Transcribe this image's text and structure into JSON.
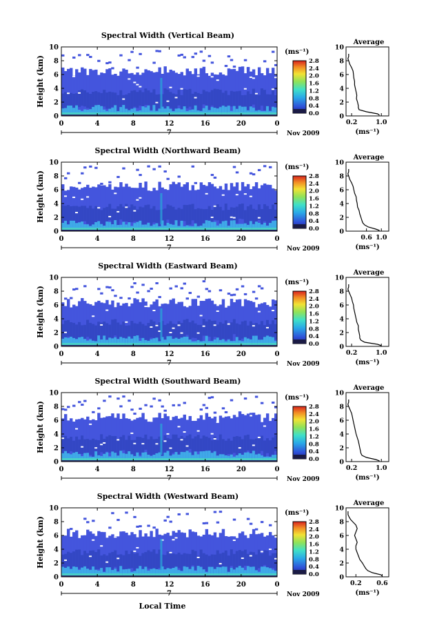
{
  "figure": {
    "time_axis_label": "Local Time",
    "date_label": "Nov 2009",
    "day_label": "7",
    "colors": {
      "background": "#ffffff",
      "text": "#000000",
      "dark_base": "#2b2b6e",
      "blue_field": "#4455dd",
      "light_field": "#3fa9e8",
      "cyan_ground": "#48d0c8"
    }
  },
  "chart_data": [
    {
      "type": "heatmap",
      "title": "Spectral Width (Vertical Beam)",
      "xlabel": "",
      "ylabel": "Height (km)",
      "xlim": [
        0,
        24
      ],
      "ylim": [
        0,
        10
      ],
      "xticks": [
        "0",
        "4",
        "8",
        "12",
        "16",
        "20",
        "0"
      ],
      "yticks": [
        "0",
        "2",
        "4",
        "6",
        "8",
        "10"
      ],
      "colorbar": {
        "unit_label": "(ms⁻¹)",
        "ticks": [
          "0.0",
          "0.4",
          "0.8",
          "1.2",
          "1.6",
          "2.0",
          "2.4",
          "2.8"
        ],
        "range": [
          0,
          2.8
        ]
      },
      "cloud_top_km": 6.5,
      "average": {
        "title": "Average",
        "xlabel": "(ms⁻¹)",
        "xticks": [
          "0.2",
          "1.0"
        ],
        "xlim": [
          0.05,
          1.2
        ],
        "ylim": [
          0,
          10
        ],
        "yticks": [
          "0",
          "2",
          "4",
          "6",
          "8",
          "10"
        ],
        "height": [
          0.1,
          0.3,
          0.6,
          0.9,
          1.2,
          1.5,
          2.0,
          2.5,
          3.0,
          3.5,
          4.0,
          4.5,
          5.0,
          5.5,
          6.0,
          6.5,
          7.0,
          7.5,
          8.0,
          8.3,
          8.6,
          9.0
        ],
        "width": [
          0.95,
          0.9,
          0.6,
          0.4,
          0.38,
          0.38,
          0.36,
          0.33,
          0.34,
          0.32,
          0.3,
          0.28,
          0.28,
          0.26,
          0.25,
          0.24,
          0.2,
          0.15,
          0.12,
          0.1,
          0.12,
          0.12
        ]
      }
    },
    {
      "type": "heatmap",
      "title": "Spectral Width (Northward Beam)",
      "xlabel": "",
      "ylabel": "Height (km)",
      "xlim": [
        0,
        24
      ],
      "ylim": [
        0,
        10
      ],
      "xticks": [
        "0",
        "4",
        "8",
        "12",
        "16",
        "20",
        "0"
      ],
      "yticks": [
        "0",
        "2",
        "4",
        "6",
        "8",
        "10"
      ],
      "colorbar": {
        "unit_label": "(ms⁻¹)",
        "ticks": [
          "0.0",
          "0.4",
          "0.8",
          "1.2",
          "1.6",
          "2.0",
          "2.4",
          "2.8"
        ],
        "range": [
          0,
          2.8
        ]
      },
      "cloud_top_km": 6.5,
      "average": {
        "title": "Average",
        "xlabel": "(ms⁻¹)",
        "xticks": [
          "0.6",
          "1.0"
        ],
        "xlim": [
          0.05,
          1.2
        ],
        "ylim": [
          0,
          10
        ],
        "yticks": [
          "0",
          "2",
          "4",
          "6",
          "8",
          "10"
        ],
        "height": [
          0.1,
          0.3,
          0.6,
          0.9,
          1.2,
          1.5,
          2.0,
          2.5,
          3.0,
          3.5,
          4.0,
          4.5,
          5.0,
          5.5,
          6.0,
          6.5,
          7.0,
          7.5,
          8.0,
          8.3,
          8.6,
          9.0
        ],
        "width": [
          0.95,
          0.85,
          0.65,
          0.55,
          0.5,
          0.48,
          0.45,
          0.42,
          0.4,
          0.36,
          0.35,
          0.33,
          0.32,
          0.28,
          0.26,
          0.24,
          0.2,
          0.15,
          0.12,
          0.1,
          0.12,
          0.12
        ]
      }
    },
    {
      "type": "heatmap",
      "title": "Spectral Width (Eastward Beam)",
      "xlabel": "",
      "ylabel": "Height (km)",
      "xlim": [
        0,
        24
      ],
      "ylim": [
        0,
        10
      ],
      "xticks": [
        "0",
        "4",
        "8",
        "12",
        "16",
        "20",
        "0"
      ],
      "yticks": [
        "0",
        "2",
        "4",
        "6",
        "8",
        "10"
      ],
      "colorbar": {
        "unit_label": "(ms⁻¹)",
        "ticks": [
          "0.0",
          "0.4",
          "0.8",
          "1.2",
          "1.6",
          "2.0",
          "2.4",
          "2.8"
        ],
        "range": [
          0,
          2.8
        ]
      },
      "cloud_top_km": 6.3,
      "average": {
        "title": "Average",
        "xlabel": "(ms⁻¹)",
        "xticks": [
          "0.2",
          "1.0"
        ],
        "xlim": [
          0.05,
          1.2
        ],
        "ylim": [
          0,
          10
        ],
        "yticks": [
          "0",
          "2",
          "4",
          "6",
          "8",
          "10"
        ],
        "height": [
          0.1,
          0.3,
          0.6,
          0.9,
          1.2,
          1.5,
          2.0,
          2.5,
          3.0,
          3.5,
          4.0,
          4.5,
          5.0,
          5.5,
          6.0,
          6.5,
          7.0,
          7.5,
          8.0,
          8.3,
          8.6,
          9.0
        ],
        "width": [
          1.0,
          0.9,
          0.55,
          0.45,
          0.42,
          0.42,
          0.4,
          0.38,
          0.38,
          0.34,
          0.32,
          0.3,
          0.28,
          0.26,
          0.25,
          0.22,
          0.2,
          0.16,
          0.12,
          0.1,
          0.12,
          0.12
        ]
      }
    },
    {
      "type": "heatmap",
      "title": "Spectral Width (Southward Beam)",
      "xlabel": "",
      "ylabel": "Height (km)",
      "xlim": [
        0,
        24
      ],
      "ylim": [
        0,
        10
      ],
      "xticks": [
        "0",
        "4",
        "8",
        "12",
        "16",
        "20",
        "0"
      ],
      "yticks": [
        "0",
        "2",
        "4",
        "6",
        "8",
        "10"
      ],
      "colorbar": {
        "unit_label": "(ms⁻¹)",
        "ticks": [
          "0.0",
          "0.4",
          "0.8",
          "1.2",
          "1.6",
          "2.0",
          "2.4",
          "2.8"
        ],
        "range": [
          0,
          2.8
        ]
      },
      "cloud_top_km": 6.4,
      "average": {
        "title": "Average",
        "xlabel": "(ms⁻¹)",
        "xticks": [
          "0.2",
          "1.0"
        ],
        "xlim": [
          0.05,
          1.2
        ],
        "ylim": [
          0,
          10
        ],
        "yticks": [
          "0",
          "2",
          "4",
          "6",
          "8",
          "10"
        ],
        "height": [
          0.1,
          0.3,
          0.6,
          0.9,
          1.2,
          1.5,
          2.0,
          2.5,
          3.0,
          3.5,
          4.0,
          4.5,
          5.0,
          5.5,
          6.0,
          6.5,
          7.0,
          7.5,
          8.0,
          8.3,
          8.6,
          9.0
        ],
        "width": [
          0.95,
          0.85,
          0.6,
          0.48,
          0.45,
          0.44,
          0.42,
          0.4,
          0.38,
          0.35,
          0.32,
          0.3,
          0.28,
          0.26,
          0.24,
          0.22,
          0.2,
          0.16,
          0.12,
          0.1,
          0.12,
          0.12
        ]
      }
    },
    {
      "type": "heatmap",
      "title": "Spectral Width (Westward Beam)",
      "xlabel": "Local Time",
      "ylabel": "Height (km)",
      "xlim": [
        0,
        24
      ],
      "ylim": [
        0,
        10
      ],
      "xticks": [
        "0",
        "4",
        "8",
        "12",
        "16",
        "20",
        "0"
      ],
      "yticks": [
        "0",
        "2",
        "4",
        "6",
        "8",
        "10"
      ],
      "colorbar": {
        "unit_label": "(ms⁻¹)",
        "ticks": [
          "0.0",
          "0.4",
          "0.8",
          "1.2",
          "1.6",
          "2.0",
          "2.4",
          "2.8"
        ],
        "range": [
          0,
          2.8
        ]
      },
      "cloud_top_km": 6.3,
      "average": {
        "title": "Average",
        "xlabel": "(ms⁻¹)",
        "xticks": [
          "0.2",
          "0.6"
        ],
        "xlim": [
          0.05,
          0.7
        ],
        "ylim": [
          0,
          10
        ],
        "yticks": [
          "0",
          "2",
          "4",
          "6",
          "8",
          "10"
        ],
        "height": [
          0.1,
          0.3,
          0.6,
          0.9,
          1.2,
          1.5,
          2.0,
          2.5,
          3.0,
          3.5,
          4.0,
          4.5,
          5.0,
          5.5,
          6.0,
          6.5,
          7.0,
          7.5,
          8.0,
          8.3,
          8.6,
          9.0,
          9.5
        ],
        "width": [
          0.6,
          0.58,
          0.45,
          0.38,
          0.35,
          0.33,
          0.3,
          0.26,
          0.24,
          0.22,
          0.2,
          0.2,
          0.22,
          0.2,
          0.18,
          0.2,
          0.22,
          0.2,
          0.15,
          0.12,
          0.1,
          0.08,
          0.08
        ]
      }
    }
  ]
}
